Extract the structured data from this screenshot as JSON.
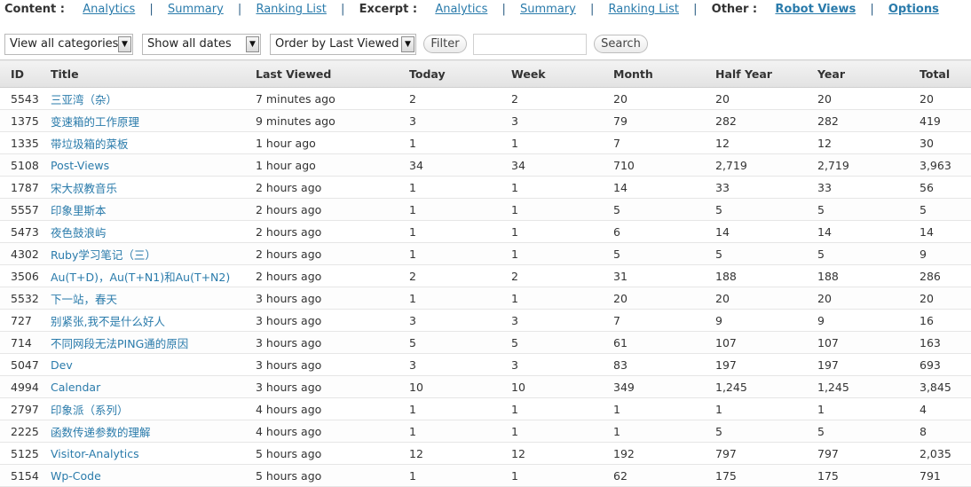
{
  "nav": {
    "content_label": "Content :",
    "content_links": [
      "Analytics",
      "Summary",
      "Ranking List"
    ],
    "excerpt_label": "Excerpt :",
    "excerpt_links": [
      "Analytics",
      "Summary",
      "Ranking List"
    ],
    "other_label": "Other :",
    "other_links": [
      "Robot Views",
      "Options"
    ],
    "separator": "|"
  },
  "filters": {
    "category": "View all categories",
    "dates": "Show all dates",
    "order": "Order by Last Viewed",
    "filter_button": "Filter",
    "search_value": "",
    "search_button": "Search"
  },
  "table": {
    "columns": [
      "ID",
      "Title",
      "Last Viewed",
      "Today",
      "Week",
      "Month",
      "Half Year",
      "Year",
      "Total"
    ],
    "rows": [
      [
        "5543",
        "三亚湾（杂）",
        "7 minutes ago",
        "2",
        "2",
        "20",
        "20",
        "20",
        "20"
      ],
      [
        "1375",
        "变速箱的工作原理",
        "9 minutes ago",
        "3",
        "3",
        "79",
        "282",
        "282",
        "419"
      ],
      [
        "1335",
        "带垃圾箱的菜板",
        "1 hour ago",
        "1",
        "1",
        "7",
        "12",
        "12",
        "30"
      ],
      [
        "5108",
        "Post-Views",
        "1 hour ago",
        "34",
        "34",
        "710",
        "2,719",
        "2,719",
        "3,963"
      ],
      [
        "1787",
        "宋大叔教音乐",
        "2 hours ago",
        "1",
        "1",
        "14",
        "33",
        "33",
        "56"
      ],
      [
        "5557",
        "印象里斯本",
        "2 hours ago",
        "1",
        "1",
        "5",
        "5",
        "5",
        "5"
      ],
      [
        "5473",
        "夜色鼓浪屿",
        "2 hours ago",
        "1",
        "1",
        "6",
        "14",
        "14",
        "14"
      ],
      [
        "4302",
        "Ruby学习笔记（三）",
        "2 hours ago",
        "1",
        "1",
        "5",
        "5",
        "5",
        "9"
      ],
      [
        "3506",
        "Au(T+D)，Au(T+N1)和Au(T+N2)",
        "2 hours ago",
        "2",
        "2",
        "31",
        "188",
        "188",
        "286"
      ],
      [
        "5532",
        "下一站，春天",
        "3 hours ago",
        "1",
        "1",
        "20",
        "20",
        "20",
        "20"
      ],
      [
        "727",
        "别紧张,我不是什么好人",
        "3 hours ago",
        "3",
        "3",
        "7",
        "9",
        "9",
        "16"
      ],
      [
        "714",
        "不同网段无法PING通的原因",
        "3 hours ago",
        "5",
        "5",
        "61",
        "107",
        "107",
        "163"
      ],
      [
        "5047",
        "Dev",
        "3 hours ago",
        "3",
        "3",
        "83",
        "197",
        "197",
        "693"
      ],
      [
        "4994",
        "Calendar",
        "3 hours ago",
        "10",
        "10",
        "349",
        "1,245",
        "1,245",
        "3,845"
      ],
      [
        "2797",
        "印象派（系列）",
        "4 hours ago",
        "1",
        "1",
        "1",
        "1",
        "1",
        "4"
      ],
      [
        "2225",
        "函数传递参数的理解",
        "4 hours ago",
        "1",
        "1",
        "1",
        "5",
        "5",
        "8"
      ],
      [
        "5125",
        "Visitor-Analytics",
        "5 hours ago",
        "12",
        "12",
        "192",
        "797",
        "797",
        "2,035"
      ],
      [
        "5154",
        "Wp-Code",
        "5 hours ago",
        "1",
        "1",
        "62",
        "175",
        "175",
        "791"
      ]
    ]
  }
}
